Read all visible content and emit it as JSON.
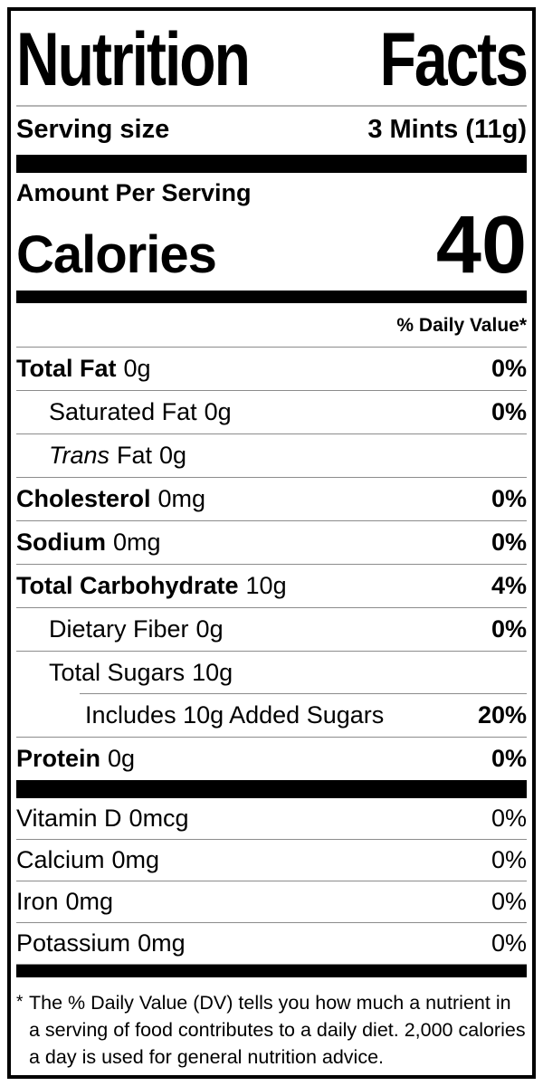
{
  "label": {
    "title": "Nutrition Facts",
    "serving_size_label": "Serving size",
    "serving_size_value": "3 Mints (11g)",
    "amount_per_serving": "Amount Per Serving",
    "calories_label": "Calories",
    "calories_value": "40",
    "daily_value_header": "% Daily Value*",
    "rows": {
      "total_fat": {
        "name": "Total Fat",
        "amount": "0g",
        "dv": "0%"
      },
      "saturated_fat": {
        "name": "Saturated Fat",
        "amount": "0g",
        "dv": "0%"
      },
      "trans_fat": {
        "name_italic": "Trans",
        "name_rest": "Fat",
        "amount": "0g"
      },
      "cholesterol": {
        "name": "Cholesterol",
        "amount": "0mg",
        "dv": "0%"
      },
      "sodium": {
        "name": "Sodium",
        "amount": "0mg",
        "dv": "0%"
      },
      "total_carbohydrate": {
        "name": "Total Carbohydrate",
        "amount": "10g",
        "dv": "4%"
      },
      "dietary_fiber": {
        "name": "Dietary Fiber",
        "amount": "0g",
        "dv": "0%"
      },
      "total_sugars": {
        "name": "Total Sugars",
        "amount": "10g"
      },
      "added_sugars": {
        "name": "Includes 10g Added Sugars",
        "dv": "20%"
      },
      "protein": {
        "name": "Protein",
        "amount": "0g",
        "dv": "0%"
      }
    },
    "vitamins": {
      "vitamin_d": {
        "name": "Vitamin D",
        "amount": "0mcg",
        "dv": "0%"
      },
      "calcium": {
        "name": "Calcium",
        "amount": "0mg",
        "dv": "0%"
      },
      "iron": {
        "name": "Iron",
        "amount": "0mg",
        "dv": "0%"
      },
      "potassium": {
        "name": "Potassium",
        "amount": "0mg",
        "dv": "0%"
      }
    },
    "footnote_marker": "*",
    "footnote_text": "The % Daily Value (DV) tells you how much a nutrient in a serving of food contributes to a daily diet. 2,000 calories a day is used for general nutrition advice."
  },
  "colors": {
    "text": "#000000",
    "background": "#ffffff",
    "bar": "#000000",
    "separator": "#8c8c8c"
  }
}
